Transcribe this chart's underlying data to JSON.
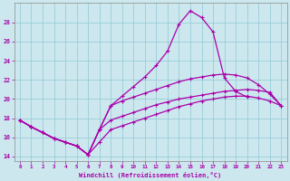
{
  "xlabel": "Windchill (Refroidissement éolien,°C)",
  "bg_color": "#cce8ee",
  "grid_color": "#99ccd8",
  "line_color": "#aa00aa",
  "xlim": [
    -0.5,
    23.5
  ],
  "ylim": [
    13.5,
    30.0
  ],
  "xticks": [
    0,
    1,
    2,
    3,
    4,
    5,
    6,
    7,
    8,
    9,
    10,
    11,
    12,
    13,
    14,
    15,
    16,
    17,
    18,
    19,
    20,
    21,
    22,
    23
  ],
  "yticks": [
    14,
    16,
    18,
    20,
    22,
    24,
    26,
    28
  ],
  "curves": [
    [
      17.8,
      17.1,
      16.5,
      15.9,
      15.5,
      15.1,
      14.2,
      16.8,
      19.3,
      20.3,
      21.3,
      22.3,
      23.5,
      25.0,
      27.8,
      29.2,
      28.5,
      27.0,
      22.2,
      20.8,
      20.2,
      null,
      null,
      null
    ],
    [
      17.8,
      17.1,
      16.5,
      15.9,
      15.5,
      15.1,
      14.2,
      16.8,
      19.3,
      19.8,
      20.2,
      20.6,
      21.0,
      21.4,
      21.8,
      22.1,
      22.3,
      22.5,
      22.6,
      22.5,
      22.2,
      21.5,
      20.5,
      19.3
    ],
    [
      17.8,
      17.1,
      16.5,
      15.9,
      15.5,
      15.1,
      14.2,
      16.8,
      17.8,
      18.2,
      18.6,
      19.0,
      19.4,
      19.7,
      20.0,
      20.2,
      20.4,
      20.6,
      20.8,
      20.9,
      21.0,
      20.9,
      20.7,
      19.3
    ],
    [
      17.8,
      17.1,
      16.5,
      15.9,
      15.5,
      15.1,
      14.2,
      15.5,
      16.8,
      17.2,
      17.6,
      18.0,
      18.4,
      18.8,
      19.2,
      19.5,
      19.8,
      20.0,
      20.2,
      20.3,
      20.3,
      20.1,
      19.8,
      19.3
    ]
  ]
}
